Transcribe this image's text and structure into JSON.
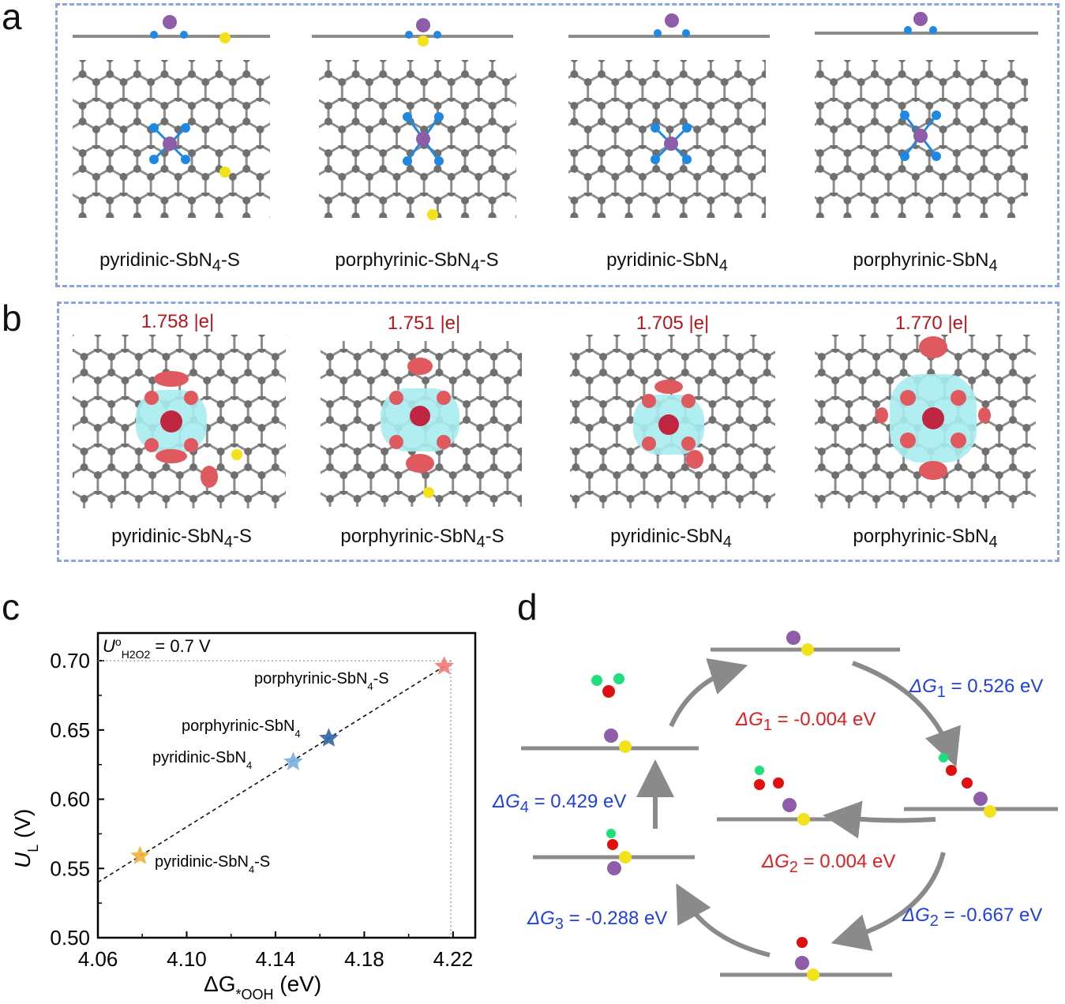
{
  "panels": {
    "a": "a",
    "b": "b",
    "c": "c",
    "d": "d"
  },
  "structures": [
    {
      "base": "pyridinic-SbN",
      "sub": "4",
      "suffix": "-S"
    },
    {
      "base": "porphyrinic-SbN",
      "sub": "4",
      "suffix": "-S"
    },
    {
      "base": "pyridinic-SbN",
      "sub": "4",
      "suffix": ""
    },
    {
      "base": "porphyrinic-SbN",
      "sub": "4",
      "suffix": ""
    }
  ],
  "charges": [
    "1.758 |e|",
    "1.751 |e|",
    "1.705 |e|",
    "1.770 |e|"
  ],
  "colors": {
    "carbon": "#7d7d7d",
    "nitrogen": "#1e88e5",
    "antimony": "#8e5ca8",
    "sulfur": "#f2e21a",
    "oxygen": "#e01010",
    "hydrogen": "#1ee07a",
    "charge_pos": "#e0595e",
    "charge_neg": "#a8ecef",
    "box": "#8aa6dc",
    "arrow": "#8a8a8a"
  },
  "chart_data": {
    "type": "scatter",
    "xlabel_main": "ΔG",
    "xlabel_sub": "*OOH",
    "xlabel_unit": " (eV)",
    "ylabel_main": "U",
    "ylabel_sub": "L",
    "ylabel_unit": " (V)",
    "xlim": [
      4.06,
      4.23
    ],
    "ylim": [
      0.5,
      0.72
    ],
    "xticks": [
      "4.06",
      "4.10",
      "4.14",
      "4.18",
      "4.22"
    ],
    "yticks": [
      "0.50",
      "0.55",
      "0.60",
      "0.65",
      "0.70"
    ],
    "xtick_values": [
      4.06,
      4.1,
      4.14,
      4.18,
      4.22
    ],
    "ytick_values": [
      0.5,
      0.55,
      0.6,
      0.65,
      0.7
    ],
    "reference_line": {
      "label_main": "U",
      "label_sup": "o",
      "label_sub": "H2O2",
      "label_value": " = 0.7 V",
      "y": 0.7,
      "x": 4.219
    },
    "points": [
      {
        "name": "porphyrinic-SbN4-S",
        "x": 4.216,
        "y": 0.696,
        "color": "#f07a78"
      },
      {
        "name": "porphyrinic-SbN4",
        "x": 4.164,
        "y": 0.644,
        "color": "#2f63a6"
      },
      {
        "name": "pyridinic-SbN4",
        "x": 4.148,
        "y": 0.627,
        "color": "#79aee0"
      },
      {
        "name": "pyridinic-SbN4-S",
        "x": 4.079,
        "y": 0.559,
        "color": "#f2b03a"
      }
    ],
    "fit_line": {
      "x": [
        4.06,
        4.216
      ],
      "y": [
        0.54,
        0.696
      ]
    }
  },
  "cycle": {
    "outer": [
      {
        "label": "ΔG",
        "sub": "1",
        "value": " = 0.526 eV"
      },
      {
        "label": "ΔG",
        "sub": "2",
        "value": " = -0.667 eV"
      },
      {
        "label": "ΔG",
        "sub": "3",
        "value": " = -0.288 eV"
      },
      {
        "label": "ΔG",
        "sub": "4",
        "value": " = 0.429 eV"
      }
    ],
    "inner": [
      {
        "label": "ΔG",
        "sub": "1",
        "value": " = -0.004 eV"
      },
      {
        "label": "ΔG",
        "sub": "2",
        "value": " = 0.004 eV"
      }
    ]
  }
}
